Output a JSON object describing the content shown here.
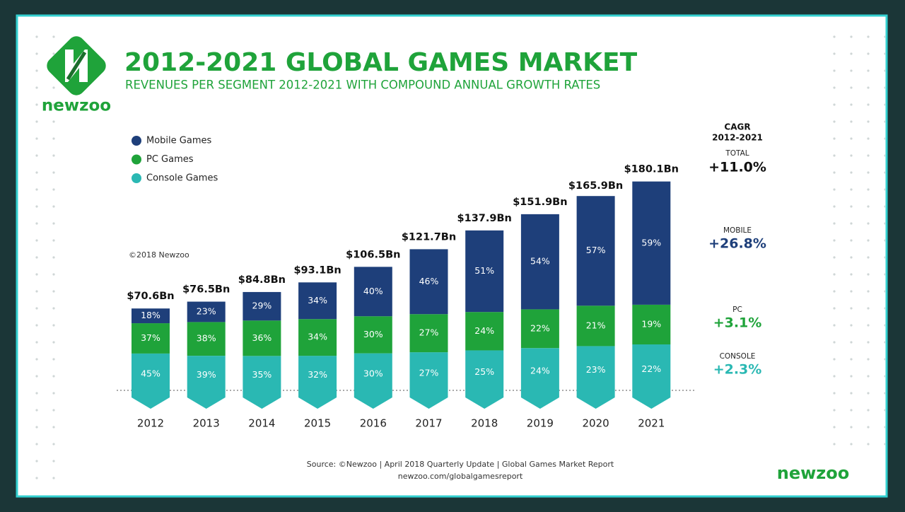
{
  "brand": "newzoo",
  "chart_data": {
    "type": "bar",
    "title": "2012-2021 GLOBAL GAMES MARKET",
    "subtitle": "REVENUES PER SEGMENT 2012-2021 WITH COMPOUND ANNUAL GROWTH RATES",
    "copyright": "©2018 Newzoo",
    "categories": [
      "2012",
      "2013",
      "2014",
      "2015",
      "2016",
      "2017",
      "2018",
      "2019",
      "2020",
      "2021"
    ],
    "totals": [
      70.6,
      76.5,
      84.8,
      93.1,
      106.5,
      121.7,
      137.9,
      151.9,
      165.9,
      180.1
    ],
    "total_labels": [
      "$70.6Bn",
      "$76.5Bn",
      "$84.8Bn",
      "$93.1Bn",
      "$106.5Bn",
      "$121.7Bn",
      "$137.9Bn",
      "$151.9Bn",
      "$165.9Bn",
      "$180.1Bn"
    ],
    "series": [
      {
        "name": "Mobile Games",
        "color": "#1e3f7a",
        "values": [
          18,
          23,
          29,
          34,
          40,
          46,
          51,
          54,
          57,
          59
        ],
        "value_labels": [
          "18%",
          "23%",
          "29%",
          "34%",
          "40%",
          "46%",
          "51%",
          "54%",
          "57%",
          "59%"
        ]
      },
      {
        "name": "PC Games",
        "color": "#1fa33a",
        "values": [
          37,
          38,
          36,
          34,
          30,
          27,
          24,
          22,
          21,
          19
        ],
        "value_labels": [
          "37%",
          "38%",
          "36%",
          "34%",
          "30%",
          "27%",
          "24%",
          "22%",
          "21%",
          "19%"
        ]
      },
      {
        "name": "Console Games",
        "color": "#2ab8b3",
        "values": [
          45,
          39,
          35,
          32,
          30,
          27,
          25,
          24,
          23,
          22
        ],
        "value_labels": [
          "45%",
          "39%",
          "35%",
          "32%",
          "30%",
          "27%",
          "25%",
          "24%",
          "23%",
          "22%"
        ]
      }
    ]
  },
  "cagr": {
    "title": "CAGR",
    "period": "2012-2021",
    "items": [
      {
        "label": "TOTAL",
        "value": "+11.0%",
        "color": "#111111"
      },
      {
        "label": "MOBILE",
        "value": "+26.8%",
        "color": "#1e3f7a"
      },
      {
        "label": "PC",
        "value": "+3.1%",
        "color": "#1fa33a"
      },
      {
        "label": "CONSOLE",
        "value": "+2.3%",
        "color": "#2ab8b3"
      }
    ]
  },
  "source": "Source: ©Newzoo | April 2018 Quarterly Update | Global Games Market Report",
  "url": "newzoo.com/globalgamesreport"
}
